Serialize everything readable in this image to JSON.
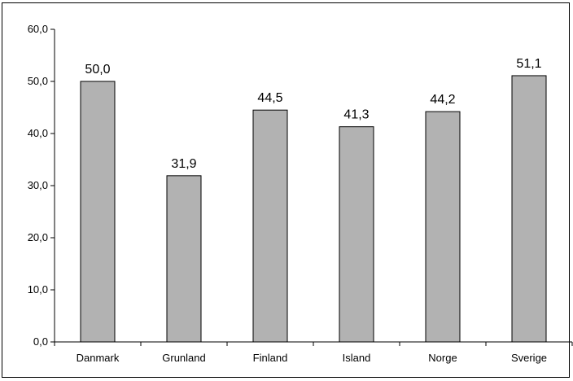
{
  "chart_data": {
    "type": "bar",
    "categories": [
      "Danmark",
      "Grunland",
      "Finland",
      "Island",
      "Norge",
      "Sverige"
    ],
    "values": [
      50.0,
      31.9,
      44.5,
      41.3,
      44.2,
      51.1
    ],
    "value_labels": [
      "50,0",
      "31,9",
      "44,5",
      "41,3",
      "44,2",
      "51,1"
    ],
    "title": "",
    "xlabel": "",
    "ylabel": "",
    "ylim": [
      0,
      60
    ],
    "yticks": [
      "0,0",
      "10,0",
      "20,0",
      "30,0",
      "40,0",
      "50,0",
      "60,0"
    ],
    "grid": false,
    "legend": "none",
    "bar_color": "#b2b2b2",
    "bar_edge_color": "#000000"
  }
}
